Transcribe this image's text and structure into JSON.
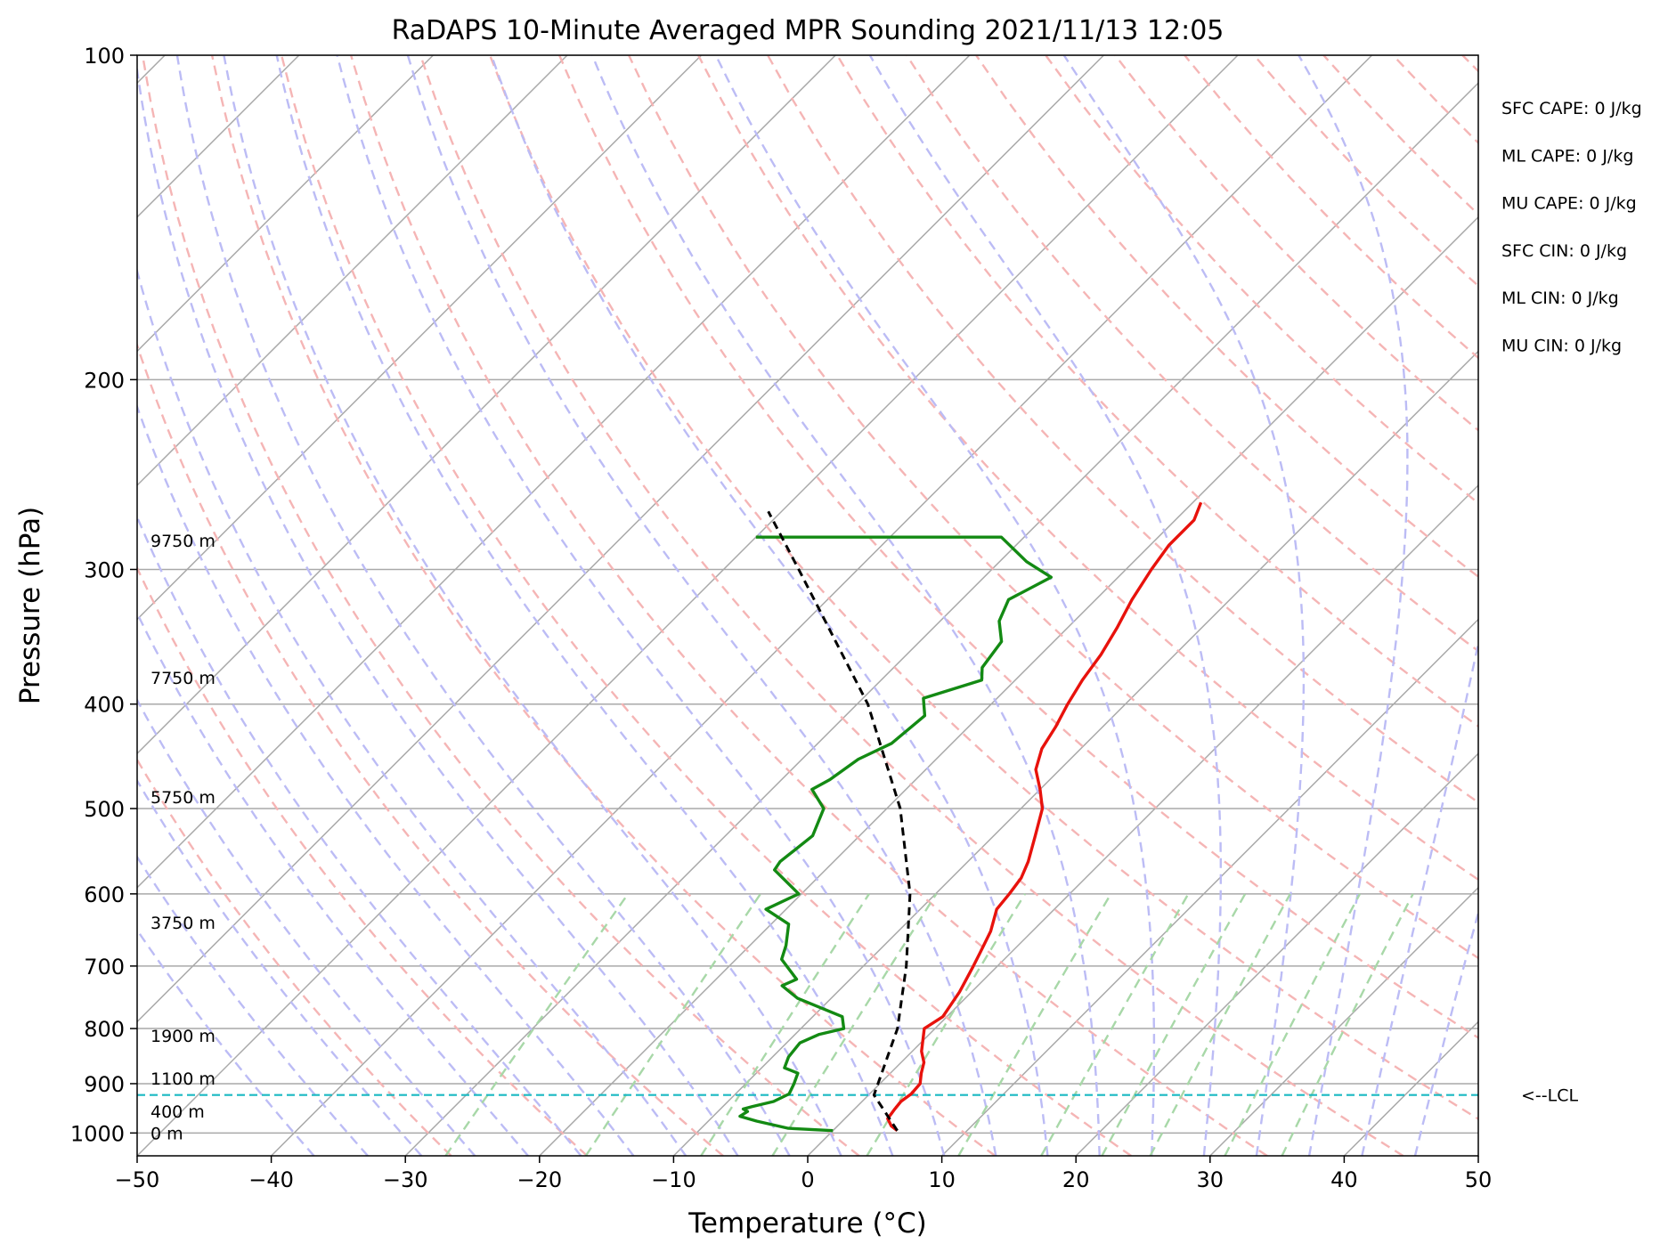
{
  "chart_data": {
    "type": "line",
    "title": "RaDAPS 10-Minute Averaged MPR Sounding 2021/11/13 12:05",
    "xlabel": "Temperature (°C)",
    "ylabel": "Pressure (hPa)",
    "xlim": [
      -50,
      50
    ],
    "ylim": [
      1050,
      100
    ],
    "y_scale": "log",
    "skew": "skew-T log-p diagram",
    "grid": true,
    "x_ticks": [
      -50,
      -40,
      -30,
      -20,
      -10,
      0,
      10,
      20,
      30,
      40,
      50
    ],
    "x_tick_labels": [
      "−50",
      "−40",
      "−30",
      "−20",
      "−10",
      "0",
      "10",
      "20",
      "30",
      "40",
      "50"
    ],
    "y_ticks": [
      100,
      200,
      300,
      400,
      500,
      600,
      700,
      800,
      900,
      1000
    ],
    "y_tick_labels": [
      "100",
      "200",
      "300",
      "400",
      "500",
      "600",
      "700",
      "800",
      "900",
      "1000"
    ],
    "series": [
      {
        "role": "temperature",
        "color": "#e8120c",
        "points": [
          [
            995,
            4.8
          ],
          [
            985,
            4.0
          ],
          [
            970,
            3.2
          ],
          [
            950,
            3.0
          ],
          [
            935,
            2.9
          ],
          [
            920,
            3.1
          ],
          [
            900,
            3.0
          ],
          [
            880,
            2.3
          ],
          [
            860,
            1.7
          ],
          [
            840,
            0.7
          ],
          [
            800,
            -0.8
          ],
          [
            780,
            -0.3
          ],
          [
            740,
            -0.9
          ],
          [
            700,
            -1.8
          ],
          [
            680,
            -2.3
          ],
          [
            650,
            -3.1
          ],
          [
            620,
            -4.3
          ],
          [
            600,
            -4.5
          ],
          [
            580,
            -4.8
          ],
          [
            560,
            -5.5
          ],
          [
            530,
            -6.9
          ],
          [
            500,
            -8.4
          ],
          [
            480,
            -10.0
          ],
          [
            460,
            -11.8
          ],
          [
            440,
            -12.9
          ],
          [
            420,
            -13.5
          ],
          [
            400,
            -14.3
          ],
          [
            380,
            -15.0
          ],
          [
            360,
            -15.5
          ],
          [
            340,
            -16.3
          ],
          [
            320,
            -17.3
          ],
          [
            300,
            -18.1
          ],
          [
            285,
            -18.6
          ],
          [
            270,
            -18.6
          ],
          [
            260,
            -19.4
          ]
        ]
      },
      {
        "role": "dewpoint",
        "color": "#138a13",
        "points": [
          [
            995,
            0.0
          ],
          [
            990,
            -3.5
          ],
          [
            975,
            -6.4
          ],
          [
            965,
            -8.0
          ],
          [
            955,
            -7.8
          ],
          [
            950,
            -8.3
          ],
          [
            945,
            -7.8
          ],
          [
            935,
            -6.6
          ],
          [
            920,
            -6.0
          ],
          [
            900,
            -6.4
          ],
          [
            880,
            -6.9
          ],
          [
            870,
            -8.3
          ],
          [
            850,
            -8.8
          ],
          [
            825,
            -9.0
          ],
          [
            810,
            -8.2
          ],
          [
            800,
            -6.8
          ],
          [
            780,
            -7.8
          ],
          [
            750,
            -12.5
          ],
          [
            730,
            -14.6
          ],
          [
            720,
            -14.0
          ],
          [
            690,
            -16.6
          ],
          [
            670,
            -17.3
          ],
          [
            640,
            -18.7
          ],
          [
            620,
            -21.5
          ],
          [
            600,
            -20.2
          ],
          [
            570,
            -23.8
          ],
          [
            560,
            -24.0
          ],
          [
            530,
            -23.5
          ],
          [
            500,
            -24.7
          ],
          [
            480,
            -27.0
          ],
          [
            470,
            -26.4
          ],
          [
            450,
            -25.8
          ],
          [
            435,
            -24.5
          ],
          [
            410,
            -24.1
          ],
          [
            395,
            -25.5
          ],
          [
            380,
            -22.5
          ],
          [
            370,
            -23.4
          ],
          [
            350,
            -23.9
          ],
          [
            335,
            -25.6
          ],
          [
            320,
            -26.5
          ],
          [
            305,
            -25.0
          ],
          [
            295,
            -28.0
          ],
          [
            280,
            -31.7
          ],
          [
            280,
            -50.0
          ]
        ]
      },
      {
        "role": "parcel",
        "color": "#000000",
        "points": [
          [
            995,
            4.8
          ],
          [
            922,
            0.4
          ],
          [
            800,
            -2.8
          ],
          [
            700,
            -6.8
          ],
          [
            600,
            -11.9
          ],
          [
            500,
            -19.0
          ],
          [
            400,
            -29.2
          ],
          [
            300,
            -44.4
          ],
          [
            265,
            -51.0
          ]
        ]
      }
    ],
    "lcl": {
      "pressure": 922,
      "label": "<--LCL"
    },
    "height_labels": [
      {
        "label": "0 m",
        "pressure": 1000
      },
      {
        "label": "400 m",
        "pressure": 955
      },
      {
        "label": "1100 m",
        "pressure": 890
      },
      {
        "label": "1900 m",
        "pressure": 812
      },
      {
        "label": "3750 m",
        "pressure": 638
      },
      {
        "label": "5750 m",
        "pressure": 488
      },
      {
        "label": "7750 m",
        "pressure": 378
      },
      {
        "label": "9750 m",
        "pressure": 282
      }
    ],
    "indices": [
      "SFC CAPE: 0 J/kg",
      "ML CAPE: 0 J/kg",
      "MU CAPE: 0 J/kg",
      "SFC CIN: 0 J/kg",
      "ML CIN: 0 J/kg",
      "MU CIN: 0 J/kg"
    ],
    "background_lines": {
      "isotherms_color": "#a9a9a9",
      "dry_adiabats_color": "#f5b5b5",
      "moist_adiabats_color": "#bcbcf5",
      "mixing_ratio_color": "#a8d8a8"
    }
  }
}
